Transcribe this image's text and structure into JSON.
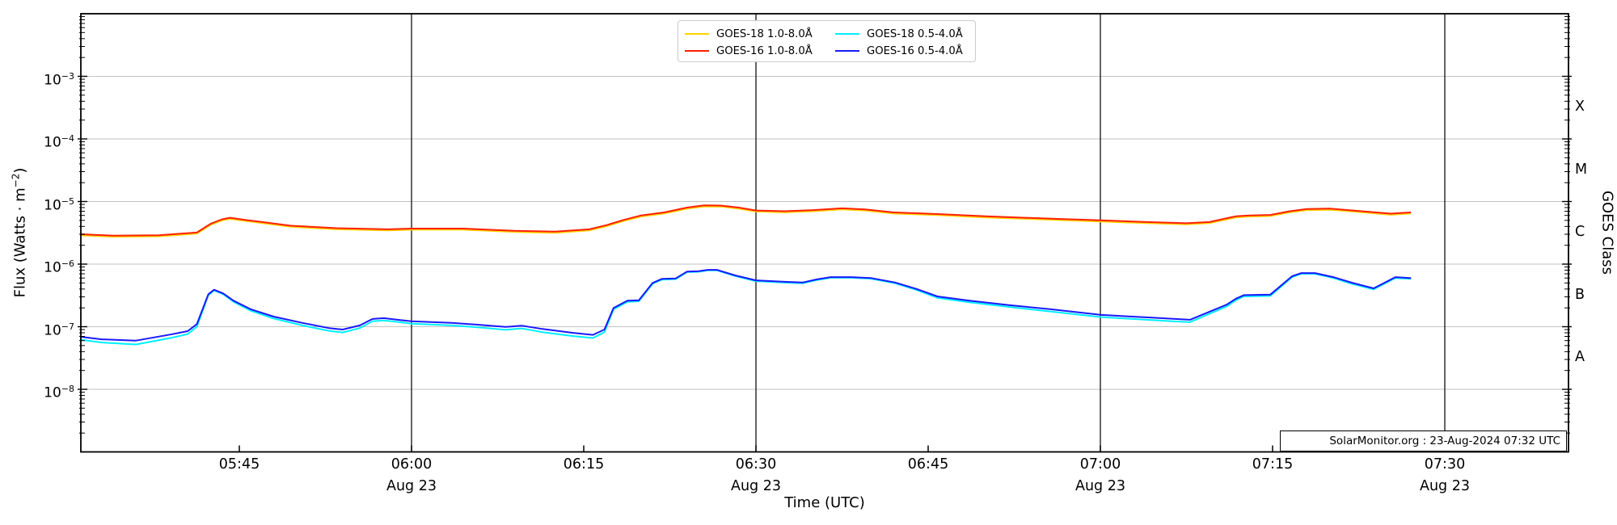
{
  "figure": {
    "watermark": "SolarMonitor.org : 23-Aug-2024 07:32 UTC"
  },
  "axes": {
    "xlabel": "Time (UTC)",
    "ylabel": {
      "pre": "Flux (Watts · m",
      "sup": "−2",
      "post": ")"
    },
    "right_axis_label": "GOES Class",
    "x_ticks": [
      {
        "minutes": 45,
        "label": "05:45"
      },
      {
        "minutes": 60,
        "label": "06:00",
        "date": "Aug 23"
      },
      {
        "minutes": 75,
        "label": "06:15"
      },
      {
        "minutes": 90,
        "label": "06:30",
        "date": "Aug 23"
      },
      {
        "minutes": 105,
        "label": "06:45"
      },
      {
        "minutes": 120,
        "label": "07:00",
        "date": "Aug 23"
      },
      {
        "minutes": 135,
        "label": "07:15"
      },
      {
        "minutes": 150,
        "label": "07:30",
        "date": "Aug 23"
      }
    ],
    "y_ticks": [
      {
        "base": "10",
        "exp": "−3",
        "flux": 0.001
      },
      {
        "base": "10",
        "exp": "−4",
        "flux": 0.0001
      },
      {
        "base": "10",
        "exp": "−5",
        "flux": 1e-05
      },
      {
        "base": "10",
        "exp": "−6",
        "flux": 1e-06
      },
      {
        "base": "10",
        "exp": "−7",
        "flux": 1e-07
      },
      {
        "base": "10",
        "exp": "−8",
        "flux": 1e-08
      }
    ],
    "goes_classes": [
      {
        "label": "X",
        "band_center_flux": 0.0003162
      },
      {
        "label": "M",
        "band_center_flux": 3.162e-05
      },
      {
        "label": "C",
        "band_center_flux": 3.162e-06
      },
      {
        "label": "B",
        "band_center_flux": 3.162e-07
      },
      {
        "label": "A",
        "band_center_flux": 3.162e-08
      }
    ]
  },
  "legend": {
    "items": [
      {
        "label": "GOES-18 1.0-8.0Å",
        "color": "#ffd400",
        "column": 0,
        "row": 0
      },
      {
        "label": "GOES-16 1.0-8.0Å",
        "color": "#ff2000",
        "column": 0,
        "row": 1
      },
      {
        "label": "GOES-18 0.5-4.0Å",
        "color": "#00efff",
        "column": 1,
        "row": 0
      },
      {
        "label": "GOES-16 0.5-4.0Å",
        "color": "#1919ff",
        "column": 1,
        "row": 1
      }
    ]
  },
  "chart_data": {
    "type": "line",
    "title": "",
    "xlabel": "Time (UTC)",
    "ylabel": "Flux (Watts · m^-2)",
    "x_encoding": "minutes after 05:00 UTC on 23-Aug-2024",
    "x_range_minutes": [
      31.2,
      160.8
    ],
    "x_tick_times": [
      "05:45",
      "06:00",
      "06:15",
      "06:30",
      "06:45",
      "07:00",
      "07:15",
      "07:30"
    ],
    "day_boundary_lines_minutes": [
      60,
      90,
      120,
      150
    ],
    "date_label": "Aug 23",
    "y_scale": "log10",
    "y_range": [
      1e-09,
      0.01
    ],
    "gridline_decades": [
      -8,
      -7,
      -6,
      -5,
      -4,
      -3
    ],
    "right_axis_classes": [
      "X",
      "M",
      "C",
      "B",
      "A"
    ],
    "legend_position": "upper center",
    "series": [
      {
        "name": "GOES-18 1.0-8.0Å",
        "color": "#ffd400",
        "points": [
          [
            31.2,
            2.88e-06
          ],
          [
            34,
            2.74e-06
          ],
          [
            38,
            2.78e-06
          ],
          [
            41.3,
            3.07e-06
          ],
          [
            42.5,
            4.22e-06
          ],
          [
            43.5,
            4.99e-06
          ],
          [
            44.2,
            5.28e-06
          ],
          [
            45.5,
            4.9e-06
          ],
          [
            47,
            4.51e-06
          ],
          [
            49.5,
            3.94e-06
          ],
          [
            53.5,
            3.6e-06
          ],
          [
            58,
            3.46e-06
          ],
          [
            60,
            3.55e-06
          ],
          [
            64.5,
            3.55e-06
          ],
          [
            69,
            3.26e-06
          ],
          [
            72.5,
            3.17e-06
          ],
          [
            75.5,
            3.46e-06
          ],
          [
            77,
            4.03e-06
          ],
          [
            78.5,
            4.9e-06
          ],
          [
            80,
            5.76e-06
          ],
          [
            82,
            6.43e-06
          ],
          [
            84,
            7.68e-06
          ],
          [
            85.5,
            8.35e-06
          ],
          [
            87,
            8.26e-06
          ],
          [
            88.5,
            7.68e-06
          ],
          [
            90,
            6.91e-06
          ],
          [
            92.5,
            6.72e-06
          ],
          [
            95,
            7.01e-06
          ],
          [
            97.5,
            7.49e-06
          ],
          [
            99.5,
            7.2e-06
          ],
          [
            102,
            6.43e-06
          ],
          [
            106,
            6.05e-06
          ],
          [
            110,
            5.57e-06
          ],
          [
            116,
            5.09e-06
          ],
          [
            120,
            4.8e-06
          ],
          [
            124,
            4.51e-06
          ],
          [
            127.5,
            4.32e-06
          ],
          [
            129.5,
            4.51e-06
          ],
          [
            131.8,
            5.57e-06
          ],
          [
            133,
            5.76e-06
          ],
          [
            134.8,
            5.86e-06
          ],
          [
            136.5,
            6.72e-06
          ],
          [
            138,
            7.3e-06
          ],
          [
            140,
            7.39e-06
          ],
          [
            142,
            6.91e-06
          ],
          [
            144,
            6.43e-06
          ],
          [
            145.3,
            6.14e-06
          ],
          [
            147,
            6.43e-06
          ]
        ]
      },
      {
        "name": "GOES-16 1.0-8.0Å",
        "color": "#ff2000",
        "points": [
          [
            31.2,
            3e-06
          ],
          [
            34,
            2.85e-06
          ],
          [
            38,
            2.9e-06
          ],
          [
            41.3,
            3.2e-06
          ],
          [
            42.5,
            4.4e-06
          ],
          [
            43.5,
            5.2e-06
          ],
          [
            44.2,
            5.5e-06
          ],
          [
            45.5,
            5.1e-06
          ],
          [
            47,
            4.7e-06
          ],
          [
            49.5,
            4.1e-06
          ],
          [
            53.5,
            3.75e-06
          ],
          [
            58,
            3.6e-06
          ],
          [
            60,
            3.7e-06
          ],
          [
            64.5,
            3.7e-06
          ],
          [
            69,
            3.4e-06
          ],
          [
            72.5,
            3.3e-06
          ],
          [
            75.5,
            3.6e-06
          ],
          [
            77,
            4.2e-06
          ],
          [
            78.5,
            5.1e-06
          ],
          [
            80,
            6e-06
          ],
          [
            82,
            6.7e-06
          ],
          [
            84,
            8e-06
          ],
          [
            85.5,
            8.7e-06
          ],
          [
            87,
            8.6e-06
          ],
          [
            88.5,
            8e-06
          ],
          [
            90,
            7.2e-06
          ],
          [
            92.5,
            7e-06
          ],
          [
            95,
            7.3e-06
          ],
          [
            97.5,
            7.8e-06
          ],
          [
            99.5,
            7.5e-06
          ],
          [
            102,
            6.7e-06
          ],
          [
            106,
            6.3e-06
          ],
          [
            110,
            5.8e-06
          ],
          [
            116,
            5.3e-06
          ],
          [
            120,
            5e-06
          ],
          [
            124,
            4.7e-06
          ],
          [
            127.5,
            4.5e-06
          ],
          [
            129.5,
            4.7e-06
          ],
          [
            131.8,
            5.8e-06
          ],
          [
            133,
            6e-06
          ],
          [
            134.8,
            6.1e-06
          ],
          [
            136.5,
            7e-06
          ],
          [
            138,
            7.6e-06
          ],
          [
            140,
            7.7e-06
          ],
          [
            142,
            7.2e-06
          ],
          [
            144,
            6.7e-06
          ],
          [
            145.3,
            6.4e-06
          ],
          [
            147,
            6.7e-06
          ]
        ]
      },
      {
        "name": "GOES-18 0.5-4.0Å",
        "color": "#00efff",
        "points": [
          [
            31.2,
            6.2e-08
          ],
          [
            33,
            5.6e-08
          ],
          [
            36,
            5.2e-08
          ],
          [
            39,
            6.6e-08
          ],
          [
            40.5,
            7.6e-08
          ],
          [
            41.3,
            1e-07
          ],
          [
            42.3,
            3.2e-07
          ],
          [
            42.8,
            3.8e-07
          ],
          [
            43.6,
            3.3e-07
          ],
          [
            44.5,
            2.5e-07
          ],
          [
            46,
            1.8e-07
          ],
          [
            48,
            1.35e-07
          ],
          [
            50.5,
            1.05e-07
          ],
          [
            52.8,
            8.6e-08
          ],
          [
            54,
            8.1e-08
          ],
          [
            55.5,
            9.5e-08
          ],
          [
            56.6,
            1.22e-07
          ],
          [
            57.6,
            1.26e-07
          ],
          [
            59,
            1.18e-07
          ],
          [
            60,
            1.12e-07
          ],
          [
            63.5,
            1.05e-07
          ],
          [
            66,
            9.7e-08
          ],
          [
            68.2,
            8.9e-08
          ],
          [
            69.6,
            9.4e-08
          ],
          [
            71.4,
            8.2e-08
          ],
          [
            74,
            7.1e-08
          ],
          [
            75.8,
            6.6e-08
          ],
          [
            76.8,
            8.2e-08
          ],
          [
            77.6,
            1.9e-07
          ],
          [
            78.8,
            2.5e-07
          ],
          [
            79.8,
            2.55e-07
          ],
          [
            81,
            4.85e-07
          ],
          [
            81.8,
            5.65e-07
          ],
          [
            83,
            5.75e-07
          ],
          [
            84,
            7.45e-07
          ],
          [
            85,
            7.55e-07
          ],
          [
            85.8,
            7.95e-07
          ],
          [
            86.6,
            7.95e-07
          ],
          [
            88.2,
            6.45e-07
          ],
          [
            90,
            5.35e-07
          ],
          [
            92.7,
            5.05e-07
          ],
          [
            94.1,
            4.95e-07
          ],
          [
            95.3,
            5.55e-07
          ],
          [
            96.5,
            6.05e-07
          ],
          [
            98.3,
            6.05e-07
          ],
          [
            100,
            5.85e-07
          ],
          [
            102.1,
            4.95e-07
          ],
          [
            104,
            3.85e-07
          ],
          [
            105.8,
            2.9e-07
          ],
          [
            108.6,
            2.45e-07
          ],
          [
            112.2,
            2.05e-07
          ],
          [
            115.7,
            1.75e-07
          ],
          [
            120,
            1.43e-07
          ],
          [
            122.8,
            1.33e-07
          ],
          [
            124.5,
            1.28e-07
          ],
          [
            125.9,
            1.23e-07
          ],
          [
            127.8,
            1.18e-07
          ],
          [
            129.4,
            1.58e-07
          ],
          [
            131,
            2.1e-07
          ],
          [
            131.8,
            2.65e-07
          ],
          [
            132.5,
            3.05e-07
          ],
          [
            134.8,
            3.1e-07
          ],
          [
            136.7,
            6.2e-07
          ],
          [
            137.5,
            7e-07
          ],
          [
            138.7,
            7e-07
          ],
          [
            140.3,
            6e-07
          ],
          [
            141.9,
            4.85e-07
          ],
          [
            143.8,
            3.95e-07
          ],
          [
            145.7,
            6e-07
          ],
          [
            147,
            5.8e-07
          ]
        ]
      },
      {
        "name": "GOES-16 0.5-4.0Å",
        "color": "#1919ff",
        "points": [
          [
            31.2,
            6.9e-08
          ],
          [
            33,
            6.3e-08
          ],
          [
            36,
            6e-08
          ],
          [
            39,
            7.5e-08
          ],
          [
            40.5,
            8.5e-08
          ],
          [
            41.3,
            1.1e-07
          ],
          [
            42.3,
            3.3e-07
          ],
          [
            42.8,
            3.9e-07
          ],
          [
            43.6,
            3.4e-07
          ],
          [
            44.5,
            2.6e-07
          ],
          [
            46,
            1.9e-07
          ],
          [
            48,
            1.45e-07
          ],
          [
            50.5,
            1.15e-07
          ],
          [
            52.8,
            9.5e-08
          ],
          [
            54,
            9e-08
          ],
          [
            55.5,
            1.05e-07
          ],
          [
            56.6,
            1.33e-07
          ],
          [
            57.6,
            1.37e-07
          ],
          [
            59,
            1.28e-07
          ],
          [
            60,
            1.22e-07
          ],
          [
            63.5,
            1.15e-07
          ],
          [
            66,
            1.07e-07
          ],
          [
            68.2,
            9.9e-08
          ],
          [
            69.6,
            1.04e-07
          ],
          [
            71.4,
            9.2e-08
          ],
          [
            74,
            8e-08
          ],
          [
            75.8,
            7.4e-08
          ],
          [
            76.8,
            9e-08
          ],
          [
            77.6,
            2e-07
          ],
          [
            78.8,
            2.6e-07
          ],
          [
            79.8,
            2.65e-07
          ],
          [
            81,
            5e-07
          ],
          [
            81.8,
            5.8e-07
          ],
          [
            83,
            5.9e-07
          ],
          [
            84,
            7.6e-07
          ],
          [
            85,
            7.7e-07
          ],
          [
            85.8,
            8.1e-07
          ],
          [
            86.6,
            8.1e-07
          ],
          [
            88.2,
            6.6e-07
          ],
          [
            90,
            5.5e-07
          ],
          [
            92.7,
            5.2e-07
          ],
          [
            94.1,
            5.1e-07
          ],
          [
            95.3,
            5.7e-07
          ],
          [
            96.5,
            6.2e-07
          ],
          [
            98.3,
            6.2e-07
          ],
          [
            100,
            6e-07
          ],
          [
            102.1,
            5.1e-07
          ],
          [
            104,
            4e-07
          ],
          [
            105.8,
            3.05e-07
          ],
          [
            108.6,
            2.6e-07
          ],
          [
            112.2,
            2.2e-07
          ],
          [
            115.7,
            1.9e-07
          ],
          [
            120,
            1.55e-07
          ],
          [
            122.8,
            1.45e-07
          ],
          [
            124.5,
            1.4e-07
          ],
          [
            125.9,
            1.35e-07
          ],
          [
            127.8,
            1.29e-07
          ],
          [
            129.4,
            1.7e-07
          ],
          [
            131,
            2.25e-07
          ],
          [
            131.8,
            2.8e-07
          ],
          [
            132.5,
            3.2e-07
          ],
          [
            134.8,
            3.25e-07
          ],
          [
            136.7,
            6.4e-07
          ],
          [
            137.5,
            7.2e-07
          ],
          [
            138.7,
            7.2e-07
          ],
          [
            140.3,
            6.2e-07
          ],
          [
            141.9,
            5.05e-07
          ],
          [
            143.8,
            4.1e-07
          ],
          [
            145.7,
            6.2e-07
          ],
          [
            147,
            6e-07
          ]
        ]
      }
    ]
  }
}
